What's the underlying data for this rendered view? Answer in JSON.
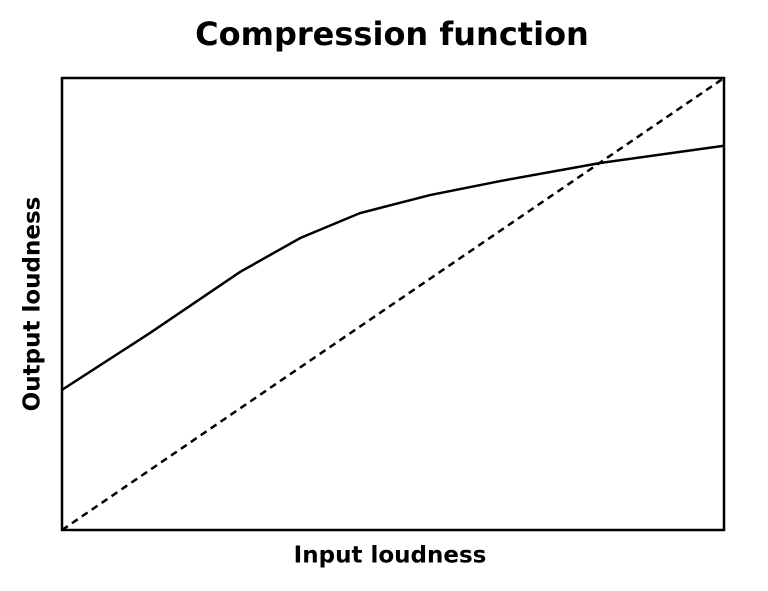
{
  "chart_data": {
    "type": "line",
    "title": "Compression function",
    "xlabel": "Input loudness",
    "ylabel": "Output loudness",
    "xlim": [
      0,
      1
    ],
    "ylim": [
      0,
      1
    ],
    "grid": false,
    "series": [
      {
        "color": "#000000",
        "dashed": false,
        "x": [
          0,
          0.133,
          0.269,
          0.36,
          0.45,
          0.556,
          0.662,
          0.813,
          1
        ],
        "values": [
          0.31,
          0.436,
          0.571,
          0.646,
          0.701,
          0.741,
          0.772,
          0.812,
          0.85
        ]
      },
      {
        "color": "#000000",
        "dashed": true,
        "x": [
          0,
          1
        ],
        "values": [
          0,
          1
        ]
      }
    ]
  }
}
